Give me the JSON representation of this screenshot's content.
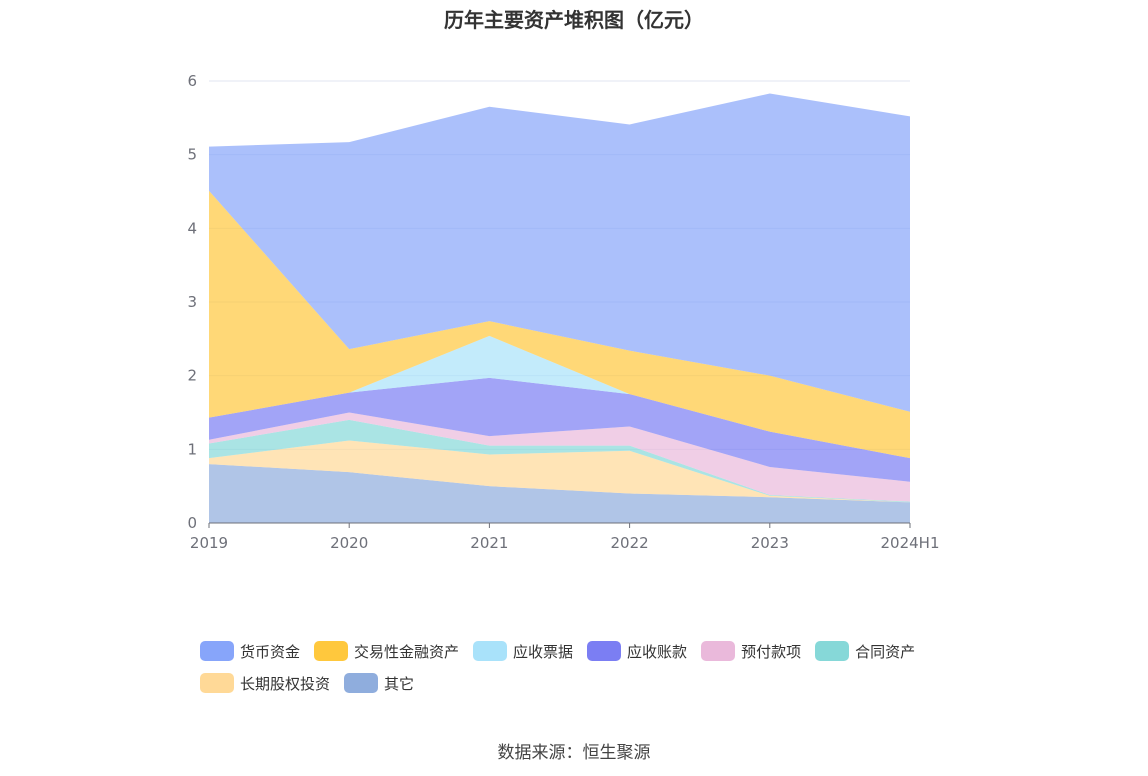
{
  "chart_data": {
    "type": "area",
    "stacked": true,
    "title": "历年主要资产堆积图（亿元）",
    "categories": [
      "2019",
      "2020",
      "2021",
      "2022",
      "2023",
      "2024H1"
    ],
    "ylim": [
      0,
      6
    ],
    "yticks": [
      0,
      1,
      2,
      3,
      4,
      5,
      6
    ],
    "grid": true,
    "legend_position": "bottom",
    "series": [
      {
        "name": "其它",
        "color": "#8faddd",
        "values": [
          0.8,
          0.69,
          0.5,
          0.4,
          0.35,
          0.28
        ]
      },
      {
        "name": "长期股权投资",
        "color": "#ffd997",
        "values": [
          0.08,
          0.43,
          0.43,
          0.58,
          0.02,
          0.0
        ]
      },
      {
        "name": "合同资产",
        "color": "#86d8d8",
        "values": [
          0.2,
          0.28,
          0.12,
          0.07,
          0.01,
          0.01
        ]
      },
      {
        "name": "预付款项",
        "color": "#eab9db",
        "values": [
          0.05,
          0.1,
          0.13,
          0.26,
          0.38,
          0.27
        ]
      },
      {
        "name": "应收账款",
        "color": "#7b7ef3",
        "values": [
          0.3,
          0.27,
          0.79,
          0.44,
          0.48,
          0.32
        ]
      },
      {
        "name": "应收票据",
        "color": "#a9e2fa",
        "values": [
          0.0,
          0.0,
          0.57,
          0.0,
          0.0,
          0.0
        ]
      },
      {
        "name": "交易性金融资产",
        "color": "#ffc83d",
        "values": [
          3.08,
          0.59,
          0.2,
          0.59,
          0.76,
          0.63
        ]
      },
      {
        "name": "货币资金",
        "color": "#87a5fa",
        "values": [
          0.6,
          2.81,
          2.91,
          3.07,
          3.83,
          4.01
        ]
      }
    ],
    "legend_order": [
      "货币资金",
      "交易性金融资产",
      "应收票据",
      "应收账款",
      "预付款项",
      "合同资产",
      "长期股权投资",
      "其它"
    ]
  },
  "source": "数据来源：恒生聚源"
}
